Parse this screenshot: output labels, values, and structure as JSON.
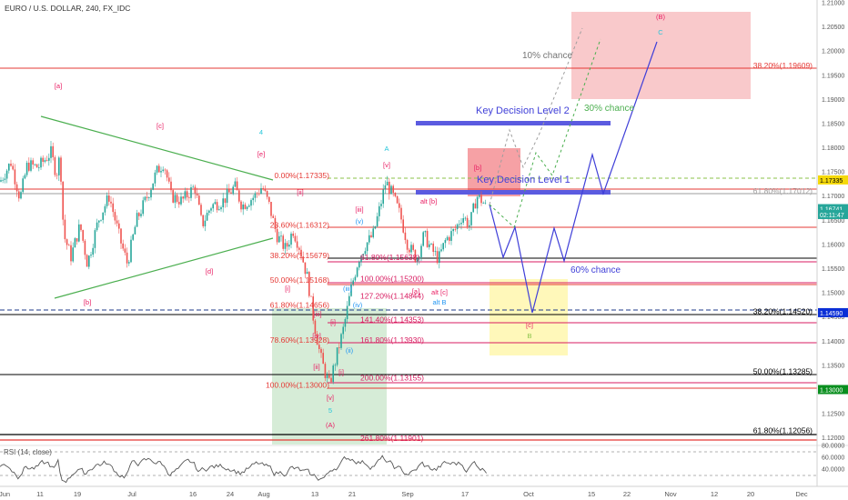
{
  "title": "EURO / U.S. DOLLAR, 240, FX_IDC",
  "rsi_label": "RSI (14, close)",
  "x_axis_labels": [
    "Jun",
    "11",
    "19",
    "Jul",
    "16",
    "24",
    "Aug",
    "13",
    "21",
    "Sep",
    "17",
    "Oct",
    "15",
    "22",
    "Nov",
    "12",
    "20",
    "Dec"
  ],
  "y_axis_labels": [
    "1.21000",
    "1.20500",
    "1.20000",
    "1.19500",
    "1.19000",
    "1.18500",
    "1.18000",
    "1.17500",
    "1.17000",
    "1.16500",
    "1.16000",
    "1.15500",
    "1.15000",
    "1.14500",
    "1.14000",
    "1.13500",
    "1.13000",
    "1.12500",
    "1.12000"
  ],
  "rsi_axis_labels": [
    "80.0000",
    "60.0000",
    "40.0000"
  ],
  "price_tags": [
    {
      "label": "1.17335",
      "price": 1.17335,
      "color": "#f5d90a",
      "text": "#000000"
    },
    {
      "label": "1.16741",
      "price": 1.16741,
      "color": "#26a69a",
      "text": "#ffffff"
    },
    {
      "label": "02:11:47",
      "price": 1.1662,
      "color": "#26a69a",
      "text": "#ffffff"
    },
    {
      "label": "1.14590",
      "price": 1.1459,
      "color": "#0b2fd6",
      "text": "#ffffff"
    },
    {
      "label": "1.13000",
      "price": 1.13,
      "color": "#0a8f1f",
      "text": "#ffffff"
    }
  ],
  "fib_retracement_labels": [
    {
      "text": "0.00%(1.17335)",
      "price": 1.17335
    },
    {
      "text": "23.60%(1.16312)",
      "price": 1.16312
    },
    {
      "text": "38.20%(1.15679)",
      "price": 1.15679
    },
    {
      "text": "50.00%(1.15168)",
      "price": 1.15168
    },
    {
      "text": "61.80%(1.14656)",
      "price": 1.14656
    },
    {
      "text": "78.60%(1.13928)",
      "price": 1.13928
    },
    {
      "text": "100.00%(1.13000)",
      "price": 1.13
    }
  ],
  "fib_extension_labels": [
    {
      "text": "61.80%(1.15638)",
      "price": 1.15638
    },
    {
      "text": "100.00%(1.15200)",
      "price": 1.152
    },
    {
      "text": "127.20%(1.14844)",
      "price": 1.14844
    },
    {
      "text": "141.40%(1.14353)",
      "price": 1.14353
    },
    {
      "text": "161.80%(1.13930)",
      "price": 1.1393
    },
    {
      "text": "200.00%(1.13155)",
      "price": 1.13155
    },
    {
      "text": "261.80%(1.11901)",
      "price": 1.11901
    }
  ],
  "right_fib_labels": [
    {
      "text": "38.20%(1.19609)",
      "price": 1.19609,
      "color": "#e53935"
    },
    {
      "text": "61.80%(1.17012)",
      "price": 1.17012,
      "color": "#9e9e9e"
    },
    {
      "text": "38.20%(1.14520)",
      "price": 1.1452,
      "color": "#000000"
    },
    {
      "text": "50.00%(1.13285)",
      "price": 1.13285,
      "color": "#000000"
    },
    {
      "text": "61.80%(1.12056)",
      "price": 1.12056,
      "color": "#000000"
    }
  ],
  "annotations": {
    "key_decision_1": "Key Decision Level 1",
    "key_decision_2": "Key Decision Level 2",
    "chance_10": "10% chance",
    "chance_30": "30% chance",
    "chance_60": "60% chance"
  },
  "wave_labels": [
    {
      "text": "[a]",
      "color": "#e91e63"
    },
    {
      "text": "[b]",
      "color": "#e91e63"
    },
    {
      "text": "[c]",
      "color": "#e91e63"
    },
    {
      "text": "[d]",
      "color": "#e91e63"
    },
    {
      "text": "[e]",
      "color": "#e91e63"
    },
    {
      "text": "4",
      "color": "#26c6da"
    },
    {
      "text": "A",
      "color": "#26c6da"
    },
    {
      "text": "[v]",
      "color": "#e91e63"
    },
    {
      "text": "alt [b]",
      "color": "#e91e63"
    },
    {
      "text": "[b]",
      "color": "#e91e63"
    },
    {
      "text": "[a]",
      "color": "#e91e63"
    },
    {
      "text": "alt [c]",
      "color": "#e91e63"
    },
    {
      "text": "alt B",
      "color": "#2196f3"
    },
    {
      "text": "(B)",
      "color": "#e91e63"
    },
    {
      "text": "C",
      "color": "#26c6da"
    },
    {
      "text": "[c]",
      "color": "#e91e63"
    },
    {
      "text": "B",
      "color": "#8bc34a"
    },
    {
      "text": "5",
      "color": "#26c6da"
    },
    {
      "text": "(A)",
      "color": "#e91e63"
    },
    {
      "text": "[v]",
      "color": "#e91e63"
    },
    {
      "text": "(iii)",
      "color": "#2196f3"
    },
    {
      "text": "(v)",
      "color": "#2196f3"
    },
    {
      "text": "(iv)",
      "color": "#2196f3"
    },
    {
      "text": "(ii)",
      "color": "#2196f3"
    },
    {
      "text": "[iii]",
      "color": "#e91e63"
    },
    {
      "text": "[i]",
      "color": "#e91e63"
    },
    {
      "text": "[ii]",
      "color": "#e91e63"
    },
    {
      "text": "[iii]",
      "color": "#e91e63"
    },
    {
      "text": "[iv]",
      "color": "#e91e63"
    },
    {
      "text": "[i]",
      "color": "#e91e63"
    },
    {
      "text": "[ii]",
      "color": "#e91e63"
    },
    {
      "text": "[i]",
      "color": "#e91e63"
    }
  ],
  "colors": {
    "bull": "#26a69a",
    "bear": "#ef5350",
    "triangle": "#4caf50",
    "projection": "#3f3fd8",
    "key_level": "#5b5be0",
    "fib_red": "#e53935",
    "fib_magenta": "#d81b60"
  },
  "chart_data": {
    "type": "line",
    "symbol": "EURUSD",
    "timeframe": "240",
    "x": [
      "Jun",
      "11",
      "19",
      "Jul",
      "16",
      "24",
      "Aug",
      "13",
      "21",
      "Sep",
      "17"
    ],
    "series": [
      {
        "values": [
          1.173,
          1.18,
          1.168,
          1.157,
          1.172,
          1.17,
          1.161,
          1.135,
          1.14,
          1.17,
          1.167
        ]
      }
    ],
    "ylim": [
      1.119,
      1.21
    ],
    "rsi_ylim": [
      25,
      85
    ],
    "grid": false
  }
}
